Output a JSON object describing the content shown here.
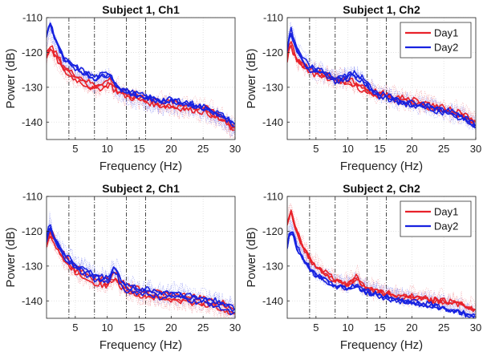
{
  "figure": {
    "xlabel": "Frequency (Hz)",
    "ylabel": "Power (dB)",
    "legend_entries": [
      "Day1",
      "Day2"
    ]
  },
  "colors": {
    "day1": "#e8222a",
    "day2": "#1722e0",
    "day1_light": "#f08a90",
    "day2_light": "#7b82f2",
    "band_lines": "#333333",
    "grid": "#dddddd"
  },
  "chart_data": [
    {
      "type": "line",
      "title": "Subject 1, Ch1",
      "xlabel": "Frequency (Hz)",
      "ylabel": "Power (dB)",
      "xlim": [
        0.5,
        30
      ],
      "ylim": [
        -145,
        -110
      ],
      "xticks": [
        5,
        10,
        15,
        20,
        25,
        30
      ],
      "yticks": [
        -110,
        -120,
        -130,
        -140
      ],
      "band_lines": [
        4,
        8,
        13,
        16
      ],
      "grid": true,
      "legend": null,
      "series": [
        {
          "name": "Day1",
          "x": [
            0.5,
            1,
            1.5,
            2,
            3,
            4,
            5,
            6,
            7,
            8,
            9,
            10,
            10.5,
            11,
            12,
            13,
            14,
            15,
            16,
            17,
            18,
            20,
            22,
            24,
            26,
            28,
            30
          ],
          "y": [
            -121,
            -118,
            -120,
            -121,
            -124,
            -126,
            -127,
            -128,
            -129,
            -130,
            -129.5,
            -129,
            -128,
            -130,
            -131,
            -132,
            -132.5,
            -133,
            -133.5,
            -134,
            -134.5,
            -135,
            -135.5,
            -136,
            -137,
            -139,
            -142
          ]
        },
        {
          "name": "Day2",
          "x": [
            0.5,
            1,
            1.5,
            2,
            3,
            4,
            5,
            6,
            7,
            8,
            9,
            10,
            10.5,
            11,
            12,
            13,
            14,
            15,
            16,
            17,
            18,
            20,
            22,
            24,
            26,
            28,
            30
          ],
          "y": [
            -116,
            -112,
            -115,
            -117,
            -122,
            -124,
            -125,
            -126,
            -127,
            -128,
            -127.5,
            -127,
            -126.5,
            -129,
            -131,
            -132,
            -132.5,
            -133,
            -133.5,
            -134,
            -134.5,
            -134.5,
            -135,
            -136,
            -137,
            -139,
            -141.5
          ]
        }
      ]
    },
    {
      "type": "line",
      "title": "Subject 1, Ch2",
      "xlabel": "Frequency (Hz)",
      "ylabel": "Power (dB)",
      "xlim": [
        0.5,
        30
      ],
      "ylim": [
        -145,
        -110
      ],
      "xticks": [
        5,
        10,
        15,
        20,
        25,
        30
      ],
      "yticks": [
        -110,
        -120,
        -130,
        -140
      ],
      "band_lines": [
        4,
        8,
        13,
        16
      ],
      "grid": true,
      "legend": "top-right",
      "series": [
        {
          "name": "Day1",
          "x": [
            0.5,
            1,
            1.5,
            2,
            3,
            4,
            5,
            6,
            7,
            8,
            9,
            10,
            11,
            12,
            13,
            14,
            15,
            16,
            17,
            18,
            20,
            22,
            24,
            26,
            28,
            30
          ],
          "y": [
            -122,
            -117,
            -120,
            -122,
            -124,
            -125,
            -126,
            -126.5,
            -127,
            -128,
            -128,
            -128.5,
            -129,
            -130,
            -131,
            -131.5,
            -132,
            -132.5,
            -133,
            -133.5,
            -134,
            -135,
            -136,
            -137,
            -138,
            -140
          ]
        },
        {
          "name": "Day2",
          "x": [
            0.5,
            1,
            1.5,
            2,
            3,
            4,
            5,
            6,
            7,
            8,
            9,
            10,
            11,
            12,
            13,
            14,
            15,
            16,
            17,
            18,
            20,
            22,
            24,
            26,
            28,
            30
          ],
          "y": [
            -119,
            -113,
            -116,
            -119,
            -122,
            -124,
            -125,
            -125.5,
            -126,
            -127.5,
            -127,
            -126.5,
            -126,
            -127,
            -129,
            -131,
            -132,
            -132.5,
            -133,
            -133.5,
            -134.5,
            -135,
            -136,
            -137,
            -138.5,
            -141
          ]
        }
      ]
    },
    {
      "type": "line",
      "title": "Subject 2, Ch1",
      "xlabel": "Frequency (Hz)",
      "ylabel": "Power (dB)",
      "xlim": [
        0.5,
        30
      ],
      "ylim": [
        -145,
        -110
      ],
      "xticks": [
        5,
        10,
        15,
        20,
        25,
        30
      ],
      "yticks": [
        -110,
        -120,
        -130,
        -140
      ],
      "band_lines": [
        4,
        8,
        13,
        16
      ],
      "grid": true,
      "legend": null,
      "series": [
        {
          "name": "Day1",
          "x": [
            0.5,
            1,
            1.5,
            2,
            3,
            4,
            5,
            6,
            7,
            8,
            9,
            10,
            11,
            11.5,
            12,
            13,
            14,
            15,
            16,
            17,
            18,
            20,
            22,
            24,
            26,
            28,
            30
          ],
          "y": [
            -124,
            -120,
            -122,
            -124,
            -127,
            -129,
            -131,
            -132,
            -133,
            -134,
            -134.5,
            -135,
            -133,
            -133.5,
            -135,
            -136.5,
            -137,
            -137.5,
            -138,
            -138,
            -138.5,
            -139,
            -139.5,
            -140,
            -140.5,
            -141.5,
            -143
          ]
        },
        {
          "name": "Day2",
          "x": [
            0.5,
            1,
            1.5,
            2,
            3,
            4,
            5,
            6,
            7,
            8,
            9,
            10,
            11,
            11.5,
            12,
            13,
            14,
            15,
            16,
            17,
            18,
            20,
            22,
            24,
            26,
            28,
            30
          ],
          "y": [
            -123,
            -118,
            -121,
            -123,
            -126,
            -128,
            -130,
            -131,
            -132,
            -133,
            -133.5,
            -134,
            -131,
            -131.5,
            -134,
            -136,
            -136.5,
            -137,
            -137,
            -137.5,
            -138,
            -138,
            -138.5,
            -139.5,
            -140,
            -141,
            -143
          ]
        }
      ]
    },
    {
      "type": "line",
      "title": "Subject 2, Ch2",
      "xlabel": "Frequency (Hz)",
      "ylabel": "Power (dB)",
      "xlim": [
        0.5,
        30
      ],
      "ylim": [
        -145,
        -110
      ],
      "xticks": [
        5,
        10,
        15,
        20,
        25,
        30
      ],
      "yticks": [
        -110,
        -120,
        -130,
        -140
      ],
      "band_lines": [
        4,
        8,
        13,
        16
      ],
      "grid": true,
      "legend": "top-right",
      "series": [
        {
          "name": "Day1",
          "x": [
            0.5,
            1,
            1.5,
            2,
            3,
            4,
            5,
            6,
            7,
            8,
            9,
            10,
            11,
            11.5,
            12,
            13,
            14,
            15,
            16,
            17,
            18,
            20,
            22,
            24,
            26,
            28,
            30
          ],
          "y": [
            -118,
            -114,
            -117,
            -120,
            -125,
            -128,
            -130,
            -131.5,
            -133,
            -134,
            -135,
            -135,
            -134,
            -133,
            -135,
            -136.5,
            -137,
            -137.5,
            -138,
            -138.5,
            -139,
            -139,
            -139.5,
            -140,
            -140.5,
            -141,
            -143
          ]
        },
        {
          "name": "Day2",
          "x": [
            0.5,
            1,
            1.5,
            2,
            3,
            4,
            5,
            6,
            7,
            8,
            9,
            10,
            11,
            11.5,
            12,
            13,
            14,
            15,
            16,
            17,
            18,
            20,
            22,
            24,
            26,
            28,
            30
          ],
          "y": [
            -124,
            -119,
            -121,
            -124,
            -128,
            -130,
            -132,
            -133,
            -134,
            -135,
            -135.5,
            -136,
            -135,
            -134.5,
            -136,
            -137,
            -137.5,
            -138,
            -138.5,
            -139,
            -139.5,
            -140,
            -140.5,
            -141,
            -142,
            -143,
            -144.5
          ]
        }
      ]
    }
  ]
}
